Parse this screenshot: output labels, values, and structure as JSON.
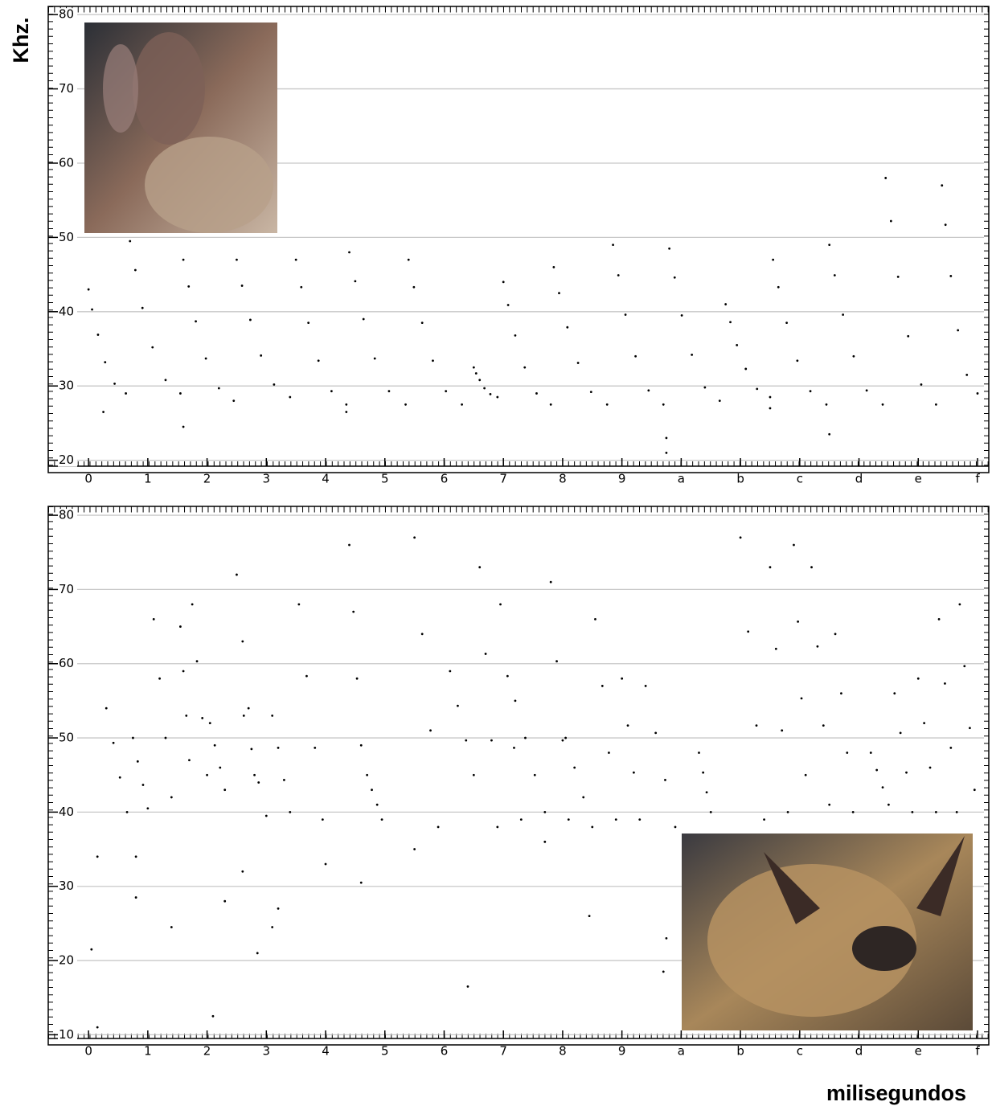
{
  "chart_data": [
    {
      "type": "scatter",
      "ylabel": "Khz.",
      "color": "#000000",
      "grid": true,
      "xlim": [
        -0.68,
        15.19
      ],
      "ylim": [
        19.2,
        81.1
      ],
      "xticks": [
        0,
        1,
        2,
        3,
        4,
        5,
        6,
        7,
        8,
        9,
        {
          "value": 10,
          "label": "a"
        },
        {
          "value": 11,
          "label": "b"
        },
        {
          "value": 12,
          "label": "c"
        },
        {
          "value": 13,
          "label": "d"
        },
        {
          "value": 14,
          "label": "e"
        },
        {
          "value": 15,
          "label": "f"
        }
      ],
      "yticks": [
        20,
        30,
        40,
        50,
        60,
        70,
        80
      ],
      "x": [
        0,
        0.06,
        0.16,
        0.28,
        0.44,
        0.63,
        0.7,
        0.79,
        0.91,
        1.08,
        1.3,
        1.55,
        1.6,
        1.69,
        1.81,
        1.98,
        2.2,
        2.45,
        2.5,
        2.59,
        2.73,
        2.91,
        3.13,
        3.4,
        3.5,
        3.59,
        3.71,
        3.88,
        4.1,
        4.35,
        4.4,
        4.5,
        4.64,
        4.83,
        5.07,
        5.35,
        5.4,
        5.49,
        5.63,
        5.81,
        6.03,
        6.3,
        6.5,
        6.54,
        6.6,
        6.68,
        6.78,
        6.9,
        7,
        7.08,
        7.2,
        7.36,
        7.56,
        7.8,
        7.85,
        7.94,
        8.08,
        8.26,
        8.48,
        8.75,
        8.85,
        8.94,
        9.06,
        9.23,
        9.45,
        9.7,
        9.8,
        9.89,
        10.01,
        10.18,
        10.4,
        10.65,
        10.75,
        10.83,
        10.94,
        11.09,
        11.28,
        11.5,
        11.55,
        11.64,
        11.78,
        11.96,
        12.18,
        12.45,
        12.5,
        12.59,
        12.73,
        12.91,
        13.13,
        13.4,
        13.45,
        13.54,
        13.66,
        13.83,
        14.05,
        14.3,
        14.4,
        14.46,
        14.55,
        14.67,
        14.82,
        15,
        0.25,
        1.6,
        4.35,
        9.75,
        9.75,
        11.5,
        12.5
      ],
      "values": [
        43,
        40.3,
        36.9,
        33.2,
        30.3,
        29,
        49.5,
        45.6,
        40.5,
        35.2,
        30.8,
        29,
        47,
        43.4,
        38.7,
        33.7,
        29.7,
        28,
        47,
        43.5,
        38.9,
        34.1,
        30.2,
        28.5,
        47,
        43.3,
        38.5,
        33.4,
        29.3,
        27.5,
        48,
        44.1,
        39,
        33.7,
        29.3,
        27.5,
        47,
        43.3,
        38.5,
        33.4,
        29.3,
        27.5,
        32.5,
        31.7,
        30.8,
        29.7,
        28.9,
        28.5,
        44,
        40.9,
        36.8,
        32.5,
        29,
        27.5,
        46,
        42.5,
        37.9,
        33.1,
        29.2,
        27.5,
        49,
        44.9,
        39.6,
        34,
        29.4,
        27.5,
        48.5,
        44.6,
        39.5,
        34.2,
        29.8,
        28,
        41,
        38.6,
        35.5,
        32.3,
        29.6,
        28.5,
        47,
        43.3,
        38.5,
        33.4,
        29.3,
        27.5,
        49,
        44.9,
        39.6,
        34,
        29.4,
        27.5,
        58,
        52.2,
        44.7,
        36.7,
        30.2,
        27.5,
        57,
        51.7,
        44.8,
        37.5,
        31.5,
        29,
        26.5,
        24.5,
        26.5,
        21,
        23,
        27,
        23.5
      ]
    },
    {
      "type": "scatter",
      "xlabel": "milisegundos",
      "color": "#000000",
      "grid": true,
      "xlim": [
        -0.68,
        15.19
      ],
      "ylim": [
        9.5,
        81.2
      ],
      "xticks": [
        0,
        1,
        2,
        3,
        4,
        5,
        6,
        7,
        8,
        9,
        {
          "value": 10,
          "label": "a"
        },
        {
          "value": 11,
          "label": "b"
        },
        {
          "value": 12,
          "label": "c"
        },
        {
          "value": 13,
          "label": "d"
        },
        {
          "value": 14,
          "label": "e"
        },
        {
          "value": 15,
          "label": "f"
        }
      ],
      "yticks": [
        10,
        20,
        30,
        40,
        50,
        60,
        70,
        80
      ],
      "x": [
        0.3,
        0.42,
        0.53,
        0.65,
        0.75,
        0.83,
        0.92,
        1.0,
        1.1,
        1.2,
        1.3,
        1.4,
        1.55,
        1.6,
        1.65,
        1.7,
        1.75,
        1.83,
        1.92,
        2.0,
        2.05,
        2.13,
        2.22,
        2.3,
        2.5,
        2.6,
        2.7,
        2.8,
        2.62,
        2.75,
        2.87,
        3.0,
        3.1,
        3.2,
        3.3,
        3.4,
        3.55,
        3.68,
        3.82,
        3.95,
        4.4,
        4.47,
        4.53,
        4.6,
        4.7,
        4.78,
        4.87,
        4.95,
        5.5,
        5.63,
        5.77,
        5.9,
        6.1,
        6.23,
        6.37,
        6.5,
        6.6,
        6.7,
        6.8,
        6.9,
        6.95,
        7.07,
        7.18,
        7.3,
        7.2,
        7.37,
        7.53,
        7.7,
        7.8,
        7.9,
        8.0,
        8.1,
        8.05,
        8.2,
        8.35,
        8.5,
        8.55,
        8.67,
        8.78,
        8.9,
        9.0,
        9.1,
        9.2,
        9.3,
        9.4,
        9.57,
        9.73,
        9.9,
        10.3,
        10.37,
        10.43,
        10.5,
        11.0,
        11.13,
        11.27,
        11.4,
        11.5,
        11.6,
        11.7,
        11.8,
        11.9,
        11.97,
        12.03,
        12.1,
        12.2,
        12.3,
        12.4,
        12.5,
        12.6,
        12.7,
        12.8,
        12.9,
        13.2,
        13.3,
        13.4,
        13.5,
        13.6,
        13.7,
        13.8,
        13.9,
        14.0,
        14.1,
        14.2,
        14.3,
        14.35,
        14.45,
        14.55,
        14.65,
        14.7,
        14.78,
        14.87,
        14.95,
        0.05,
        0.15,
        0.15,
        0.8,
        0.8,
        1.4,
        2.1,
        2.3,
        2.6,
        2.85,
        3.1,
        3.2,
        4.0,
        4.6,
        5.5,
        6.4,
        7.7,
        8.45,
        9.7,
        9.75
      ],
      "values": [
        54,
        49.33,
        44.67,
        40,
        50,
        46.83,
        43.67,
        40.5,
        66,
        58,
        50,
        42,
        65,
        59,
        53,
        47,
        68,
        60.33,
        52.67,
        45,
        52,
        49,
        46,
        43,
        72,
        63,
        54,
        45,
        53,
        48.5,
        44,
        39.5,
        53,
        48.67,
        44.33,
        40,
        68,
        58.33,
        48.67,
        39,
        76,
        67,
        58,
        49,
        45,
        43,
        41,
        39,
        77,
        64,
        51,
        38,
        59,
        54.33,
        49.67,
        45,
        73,
        61.33,
        49.67,
        38,
        68,
        58.33,
        48.67,
        39,
        55,
        50,
        45,
        40,
        71,
        60.33,
        49.67,
        39,
        50,
        46,
        42,
        38,
        66,
        57,
        48,
        39,
        58,
        51.67,
        45.33,
        39,
        57,
        50.67,
        44.33,
        38,
        48,
        45.33,
        42.67,
        40,
        77,
        64.33,
        51.67,
        39,
        73,
        62,
        51,
        40,
        76,
        65.67,
        55.33,
        45,
        73,
        62.33,
        51.67,
        41,
        64,
        56,
        48,
        40,
        48,
        45.67,
        43.33,
        41,
        56,
        50.67,
        45.33,
        40,
        58,
        52,
        46,
        40,
        66,
        57.33,
        48.67,
        40,
        68,
        59.67,
        51.33,
        43,
        21.5,
        11,
        34,
        34,
        28.5,
        24.5,
        12.5,
        28,
        32,
        21,
        24.5,
        27,
        33,
        30.5,
        35,
        16.5,
        36,
        26,
        18.5,
        23
      ]
    }
  ]
}
